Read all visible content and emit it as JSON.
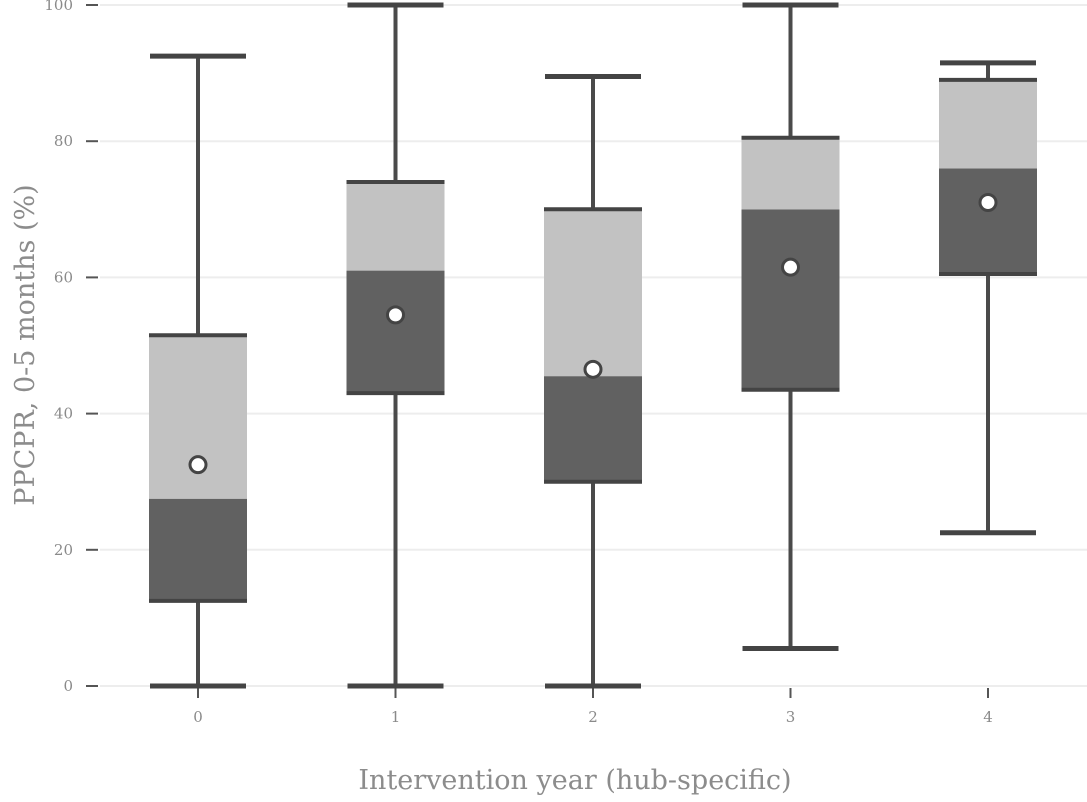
{
  "chart_data": {
    "type": "box",
    "xlabel": "Intervention year (hub-specific)",
    "ylabel": "PPCPR, 0-5 months (%)",
    "ylim": [
      0,
      100
    ],
    "yticks": [
      0,
      20,
      40,
      60,
      80,
      100
    ],
    "grid": "horizontal",
    "categories": [
      "0",
      "1",
      "2",
      "3",
      "4"
    ],
    "boxes": [
      {
        "category": "0",
        "min": 0,
        "q1": 12.5,
        "median": 27.5,
        "q3": 51.5,
        "max": 92.5,
        "mean": 32.5
      },
      {
        "category": "1",
        "min": 0,
        "q1": 43.0,
        "median": 61.0,
        "q3": 74.0,
        "max": 100,
        "mean": 54.5
      },
      {
        "category": "2",
        "min": 0,
        "q1": 30.0,
        "median": 45.5,
        "q3": 70.0,
        "max": 89.5,
        "mean": 46.5
      },
      {
        "category": "3",
        "min": 5.5,
        "q1": 43.5,
        "median": 70.0,
        "q3": 80.5,
        "max": 100,
        "mean": 61.5
      },
      {
        "category": "4",
        "min": 22.5,
        "q1": 60.5,
        "median": 76.0,
        "q3": 89.0,
        "max": 91.5,
        "mean": 71.0
      }
    ],
    "colors": {
      "lower_box": "#616161",
      "upper_box": "#c2c2c2",
      "line": "#444444",
      "grid": "#ededed",
      "tick_label": "#8a8a8a",
      "axis_title": "#8c8c8c"
    }
  }
}
